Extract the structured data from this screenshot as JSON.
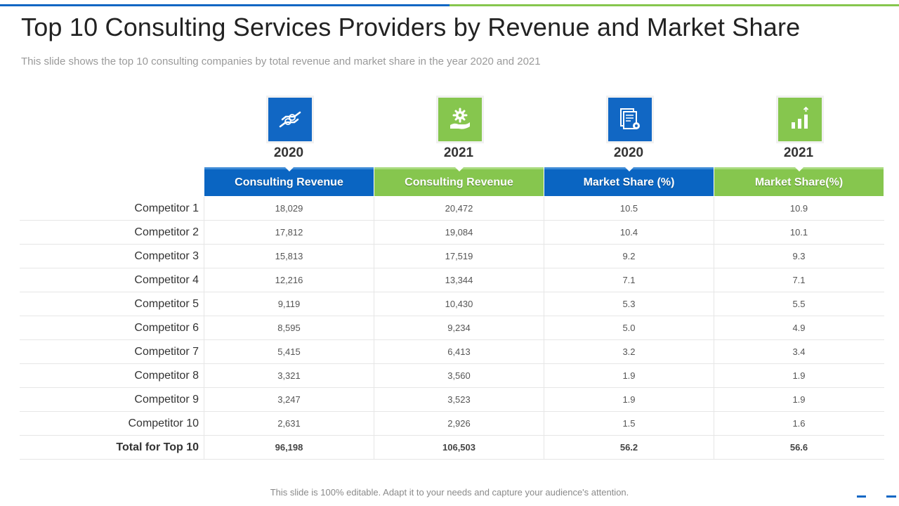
{
  "title": "Top 10 Consulting Services Providers by Revenue and Market Share",
  "subtitle": "This slide shows the top 10 consulting companies by total revenue and market share in the year 2020 and 2021",
  "footer": "This slide is 100% editable. Adapt it to your needs and capture your audience's attention.",
  "colors": {
    "blue": "#1167c4",
    "green": "#86c64e"
  },
  "columns": [
    {
      "year": "2020",
      "header": "Consulting Revenue",
      "icon": "hand-money-icon",
      "color": "blue"
    },
    {
      "year": "2021",
      "header": "Consulting Revenue",
      "icon": "hand-gear-icon",
      "color": "green"
    },
    {
      "year": "2020",
      "header": "Market Share (%)",
      "icon": "document-gear-icon",
      "color": "blue"
    },
    {
      "year": "2021",
      "header": "Market Share(%)",
      "icon": "bar-chart-icon",
      "color": "green"
    }
  ],
  "rows": [
    {
      "label": "Competitor 1",
      "values": [
        "18,029",
        "20,472",
        "10.5",
        "10.9"
      ]
    },
    {
      "label": "Competitor 2",
      "values": [
        "17,812",
        "19,084",
        "10.4",
        "10.1"
      ]
    },
    {
      "label": "Competitor 3",
      "values": [
        "15,813",
        "17,519",
        "9.2",
        "9.3"
      ]
    },
    {
      "label": "Competitor 4",
      "values": [
        "12,216",
        "13,344",
        "7.1",
        "7.1"
      ]
    },
    {
      "label": "Competitor 5",
      "values": [
        "9,119",
        "10,430",
        "5.3",
        "5.5"
      ]
    },
    {
      "label": "Competitor 6",
      "values": [
        "8,595",
        "9,234",
        "5.0",
        "4.9"
      ]
    },
    {
      "label": "Competitor 7",
      "values": [
        "5,415",
        "6,413",
        "3.2",
        "3.4"
      ]
    },
    {
      "label": "Competitor 8",
      "values": [
        "3,321",
        "3,560",
        "1.9",
        "1.9"
      ]
    },
    {
      "label": "Competitor 9",
      "values": [
        "3,247",
        "3,523",
        "1.9",
        "1.9"
      ]
    },
    {
      "label": "Competitor 10",
      "values": [
        "2,631",
        "2,926",
        "1.5",
        "1.6"
      ]
    }
  ],
  "total": {
    "label": "Total for Top 10",
    "values": [
      "96,198",
      "106,503",
      "56.2",
      "56.6"
    ]
  }
}
